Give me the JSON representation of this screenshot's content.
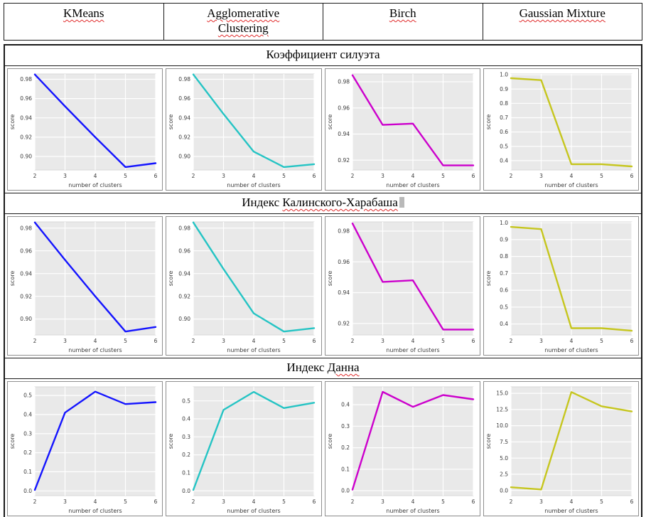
{
  "header": {
    "columns": [
      "KMeans",
      "Agglomerative Clustering",
      "Birch",
      "Gaussian Mixture"
    ]
  },
  "sections": [
    {
      "title": "Коэффициент силуэта",
      "marked": ""
    },
    {
      "title": "Индекс ",
      "marked": "Калинского-Харабаша"
    },
    {
      "title": "Индекс ",
      "marked": "Данна"
    }
  ],
  "style": {
    "plot_background": "#e9e9e9",
    "grid_color": "#ffffff",
    "spellcheck_underline": "#e02b2b"
  },
  "chart_data": [
    {
      "type": "line",
      "section": "Коэффициент силуэта",
      "algorithm": "KMeans",
      "color": "#1414ff",
      "x": [
        2,
        3,
        4,
        5,
        6
      ],
      "y": [
        0.985,
        0.952,
        0.92,
        0.889,
        0.893
      ],
      "xlabel": "number of clusters",
      "ylabel": "score",
      "xlim": [
        2,
        6
      ],
      "ylim": [
        0.886,
        0.9855
      ],
      "xtick_vals": [
        2,
        3,
        4,
        5,
        6
      ],
      "xtick_labels": [
        "2",
        "3",
        "4",
        "5",
        "6"
      ],
      "ytick_vals": [
        0.9,
        0.92,
        0.94,
        0.96,
        0.98
      ],
      "ytick_labels": [
        "0.90",
        "0.92",
        "0.94",
        "0.96",
        "0.98"
      ],
      "grid": true
    },
    {
      "type": "line",
      "section": "Коэффициент силуэта",
      "algorithm": "Agglomerative Clustering",
      "color": "#25c4c4",
      "x": [
        2,
        3,
        4,
        5,
        6
      ],
      "y": [
        0.985,
        0.944,
        0.905,
        0.889,
        0.892
      ],
      "xlabel": "number of clusters",
      "ylabel": "score",
      "xlim": [
        2,
        6
      ],
      "ylim": [
        0.886,
        0.9855
      ],
      "xtick_vals": [
        2,
        3,
        4,
        5,
        6
      ],
      "xtick_labels": [
        "2",
        "3",
        "4",
        "5",
        "6"
      ],
      "ytick_vals": [
        0.9,
        0.92,
        0.94,
        0.96,
        0.98
      ],
      "ytick_labels": [
        "0.90",
        "0.92",
        "0.94",
        "0.96",
        "0.98"
      ],
      "grid": true
    },
    {
      "type": "line",
      "section": "Коэффициент силуэта",
      "algorithm": "Birch",
      "color": "#cc00cc",
      "x": [
        2,
        3,
        4,
        5,
        6
      ],
      "y": [
        0.985,
        0.947,
        0.948,
        0.916,
        0.916
      ],
      "xlabel": "number of clusters",
      "ylabel": "score",
      "xlim": [
        2,
        6
      ],
      "ylim": [
        0.9125,
        0.986
      ],
      "xtick_vals": [
        2,
        3,
        4,
        5,
        6
      ],
      "xtick_labels": [
        "2",
        "3",
        "4",
        "5",
        "6"
      ],
      "ytick_vals": [
        0.92,
        0.94,
        0.96,
        0.98
      ],
      "ytick_labels": [
        "0.92",
        "0.94",
        "0.96",
        "0.98"
      ],
      "grid": true
    },
    {
      "type": "line",
      "section": "Коэффициент силуэта",
      "algorithm": "Gaussian Mixture",
      "color": "#c6c61e",
      "x": [
        2,
        3,
        4,
        5,
        6
      ],
      "y": [
        0.975,
        0.962,
        0.375,
        0.375,
        0.36
      ],
      "xlabel": "number of clusters",
      "ylabel": "score",
      "xlim": [
        2,
        6
      ],
      "ylim": [
        0.335,
        1.005
      ],
      "xtick_vals": [
        2,
        3,
        4,
        5,
        6
      ],
      "xtick_labels": [
        "2",
        "3",
        "4",
        "5",
        "6"
      ],
      "ytick_vals": [
        0.4,
        0.5,
        0.6,
        0.7,
        0.8,
        0.9,
        1.0
      ],
      "ytick_labels": [
        "0.4",
        "0.5",
        "0.6",
        "0.7",
        "0.8",
        "0.9",
        "1.0"
      ],
      "grid": true
    },
    {
      "type": "line",
      "section": "Индекс Калинского-Харабаша",
      "algorithm": "KMeans",
      "color": "#1414ff",
      "x": [
        2,
        3,
        4,
        5,
        6
      ],
      "y": [
        0.985,
        0.952,
        0.92,
        0.889,
        0.893
      ],
      "xlabel": "number of clusters",
      "ylabel": "score",
      "xlim": [
        2,
        6
      ],
      "ylim": [
        0.886,
        0.9855
      ],
      "xtick_vals": [
        2,
        3,
        4,
        5,
        6
      ],
      "xtick_labels": [
        "2",
        "3",
        "4",
        "5",
        "6"
      ],
      "ytick_vals": [
        0.9,
        0.92,
        0.94,
        0.96,
        0.98
      ],
      "ytick_labels": [
        "0.90",
        "0.92",
        "0.94",
        "0.96",
        "0.98"
      ],
      "grid": true
    },
    {
      "type": "line",
      "section": "Индекс Калинского-Харабаша",
      "algorithm": "Agglomerative Clustering",
      "color": "#25c4c4",
      "x": [
        2,
        3,
        4,
        5,
        6
      ],
      "y": [
        0.985,
        0.944,
        0.905,
        0.889,
        0.892
      ],
      "xlabel": "number of clusters",
      "ylabel": "score",
      "xlim": [
        2,
        6
      ],
      "ylim": [
        0.886,
        0.9855
      ],
      "xtick_vals": [
        2,
        3,
        4,
        5,
        6
      ],
      "xtick_labels": [
        "2",
        "3",
        "4",
        "5",
        "6"
      ],
      "ytick_vals": [
        0.9,
        0.92,
        0.94,
        0.96,
        0.98
      ],
      "ytick_labels": [
        "0.90",
        "0.92",
        "0.94",
        "0.96",
        "0.98"
      ],
      "grid": true
    },
    {
      "type": "line",
      "section": "Индекс Калинского-Харабаша",
      "algorithm": "Birch",
      "color": "#cc00cc",
      "x": [
        2,
        3,
        4,
        5,
        6
      ],
      "y": [
        0.985,
        0.947,
        0.948,
        0.916,
        0.916
      ],
      "xlabel": "number of clusters",
      "ylabel": "score",
      "xlim": [
        2,
        6
      ],
      "ylim": [
        0.9125,
        0.986
      ],
      "xtick_vals": [
        2,
        3,
        4,
        5,
        6
      ],
      "xtick_labels": [
        "2",
        "3",
        "4",
        "5",
        "6"
      ],
      "ytick_vals": [
        0.92,
        0.94,
        0.96,
        0.98
      ],
      "ytick_labels": [
        "0.92",
        "0.94",
        "0.96",
        "0.98"
      ],
      "grid": true
    },
    {
      "type": "line",
      "section": "Индекс Калинского-Харабаша",
      "algorithm": "Gaussian Mixture",
      "color": "#c6c61e",
      "x": [
        2,
        3,
        4,
        5,
        6
      ],
      "y": [
        0.975,
        0.962,
        0.375,
        0.375,
        0.36
      ],
      "xlabel": "number of clusters",
      "ylabel": "score",
      "xlim": [
        2,
        6
      ],
      "ylim": [
        0.335,
        1.005
      ],
      "xtick_vals": [
        2,
        3,
        4,
        5,
        6
      ],
      "xtick_labels": [
        "2",
        "3",
        "4",
        "5",
        "6"
      ],
      "ytick_vals": [
        0.4,
        0.5,
        0.6,
        0.7,
        0.8,
        0.9,
        1.0
      ],
      "ytick_labels": [
        "0.4",
        "0.5",
        "0.6",
        "0.7",
        "0.8",
        "0.9",
        "1.0"
      ],
      "grid": true
    },
    {
      "type": "line",
      "section": "Индекс Данна",
      "algorithm": "KMeans",
      "color": "#1414ff",
      "x": [
        2,
        3,
        4,
        5,
        6
      ],
      "y": [
        0.005,
        0.41,
        0.52,
        0.455,
        0.465
      ],
      "xlabel": "number of clusters",
      "ylabel": "score",
      "xlim": [
        2,
        6
      ],
      "ylim": [
        -0.025,
        0.545
      ],
      "xtick_vals": [
        2,
        3,
        4,
        5,
        6
      ],
      "xtick_labels": [
        "2",
        "3",
        "4",
        "5",
        "6"
      ],
      "ytick_vals": [
        0.0,
        0.1,
        0.2,
        0.3,
        0.4,
        0.5
      ],
      "ytick_labels": [
        "0.0",
        "0.1",
        "0.2",
        "0.3",
        "0.4",
        "0.5"
      ],
      "grid": true
    },
    {
      "type": "line",
      "section": "Индекс Данна",
      "algorithm": "Agglomerative Clustering",
      "color": "#25c4c4",
      "x": [
        2,
        3,
        4,
        5,
        6
      ],
      "y": [
        0.005,
        0.45,
        0.55,
        0.46,
        0.49
      ],
      "xlabel": "number of clusters",
      "ylabel": "score",
      "xlim": [
        2,
        6
      ],
      "ylim": [
        -0.027,
        0.578
      ],
      "xtick_vals": [
        2,
        3,
        4,
        5,
        6
      ],
      "xtick_labels": [
        "2",
        "3",
        "4",
        "5",
        "6"
      ],
      "ytick_vals": [
        0.0,
        0.1,
        0.2,
        0.3,
        0.4,
        0.5
      ],
      "ytick_labels": [
        "0.0",
        "0.1",
        "0.2",
        "0.3",
        "0.4",
        "0.5"
      ],
      "grid": true
    },
    {
      "type": "line",
      "section": "Индекс Данна",
      "algorithm": "Birch",
      "color": "#cc00cc",
      "x": [
        2,
        3,
        4,
        5,
        6
      ],
      "y": [
        0.005,
        0.46,
        0.39,
        0.445,
        0.425
      ],
      "xlabel": "number of clusters",
      "ylabel": "score",
      "xlim": [
        2,
        6
      ],
      "ylim": [
        -0.023,
        0.483
      ],
      "xtick_vals": [
        2,
        3,
        4,
        5,
        6
      ],
      "xtick_labels": [
        "2",
        "3",
        "4",
        "5",
        "6"
      ],
      "ytick_vals": [
        0.0,
        0.1,
        0.2,
        0.3,
        0.4
      ],
      "ytick_labels": [
        "0.0",
        "0.1",
        "0.2",
        "0.3",
        "0.4"
      ],
      "grid": true
    },
    {
      "type": "line",
      "section": "Индекс Данна",
      "algorithm": "Gaussian Mixture",
      "color": "#c6c61e",
      "x": [
        2,
        3,
        4,
        5,
        6
      ],
      "y": [
        0.5,
        0.15,
        15.2,
        13.0,
        12.2
      ],
      "xlabel": "number of clusters",
      "ylabel": "score",
      "xlim": [
        2,
        6
      ],
      "ylim": [
        -0.8,
        16.0
      ],
      "xtick_vals": [
        2,
        3,
        4,
        5,
        6
      ],
      "xtick_labels": [
        "2",
        "3",
        "4",
        "5",
        "6"
      ],
      "ytick_vals": [
        0.0,
        2.5,
        5.0,
        7.5,
        10.0,
        12.5,
        15.0
      ],
      "ytick_labels": [
        "0.0",
        "2.5",
        "5.0",
        "7.5",
        "10.0",
        "12.5",
        "15.0"
      ],
      "grid": true
    }
  ]
}
